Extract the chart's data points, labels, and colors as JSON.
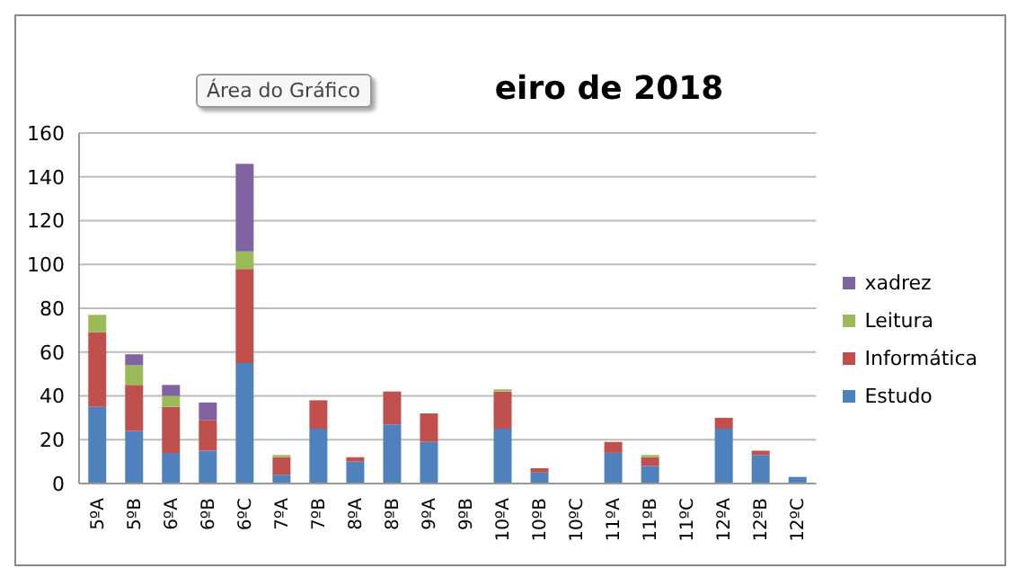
{
  "chart_data": {
    "type": "bar",
    "stacked": true,
    "title": "eiro de 2018",
    "annotations": [
      "Área do Gráfico"
    ],
    "categories": [
      "5ºA",
      "5ºB",
      "6ºA",
      "6ºB",
      "6ºC",
      "7ºA",
      "7ºB",
      "8ºA",
      "8ºB",
      "9ºA",
      "9ºB",
      "10ºA",
      "10ºB",
      "10ºC",
      "11ºA",
      "11ºB",
      "11ºC",
      "12ºA",
      "12ºB",
      "12ºC"
    ],
    "series": [
      {
        "name": "Estudo",
        "color": "#4f81bd",
        "values": [
          35,
          24,
          14,
          15,
          55,
          4,
          25,
          10,
          27,
          19,
          0,
          25,
          5,
          0,
          14,
          8,
          0,
          25,
          13,
          3
        ]
      },
      {
        "name": "Informática",
        "color": "#c0504d",
        "values": [
          34,
          21,
          21,
          14,
          43,
          8,
          13,
          2,
          15,
          13,
          0,
          17,
          2,
          0,
          5,
          4,
          0,
          5,
          2,
          0
        ]
      },
      {
        "name": "Leitura",
        "color": "#9bbb59",
        "values": [
          8,
          9,
          5,
          0,
          8,
          1,
          0,
          0,
          0,
          0,
          0,
          1,
          0,
          0,
          0,
          1,
          0,
          0,
          0,
          0
        ]
      },
      {
        "name": "xadrez",
        "color": "#8064a2",
        "values": [
          0,
          5,
          5,
          8,
          40,
          0,
          0,
          0,
          0,
          0,
          0,
          0,
          0,
          0,
          0,
          0,
          0,
          0,
          0,
          0
        ]
      }
    ],
    "ylim": [
      0,
      160
    ],
    "yticks": [
      0,
      20,
      40,
      60,
      80,
      100,
      120,
      140,
      160
    ],
    "grid": "y",
    "legend": "right"
  }
}
